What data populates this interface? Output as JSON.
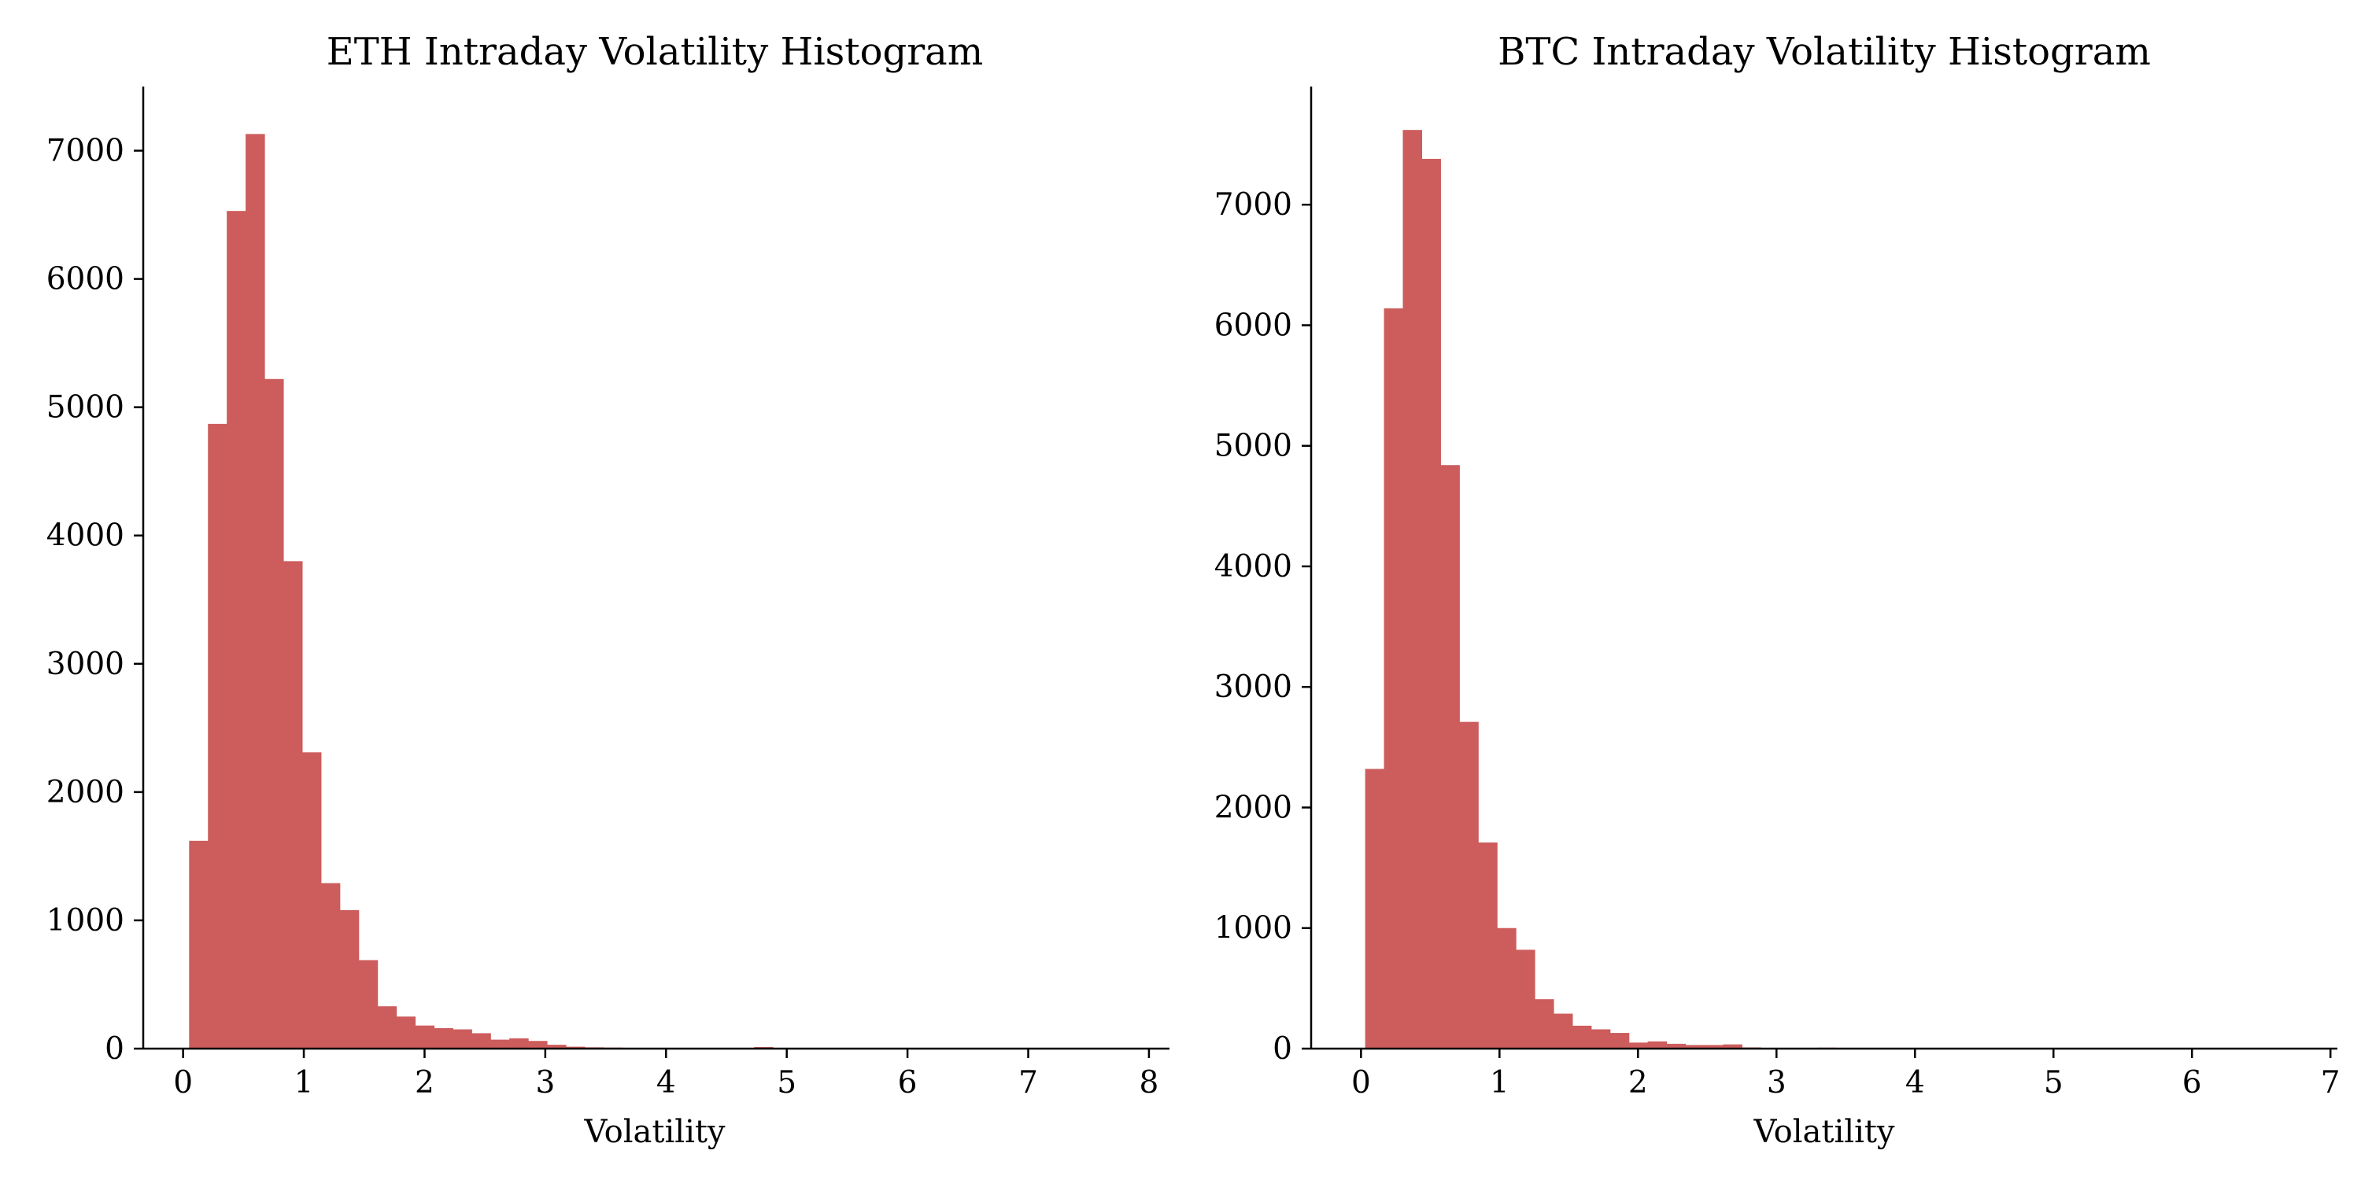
{
  "chart_data": [
    {
      "type": "bar",
      "subtype": "histogram",
      "title": "ETH Intraday Volatility Histogram",
      "xlabel": "Volatility",
      "ylabel": "",
      "xlim": [
        -0.33,
        8.17
      ],
      "ylim": [
        0,
        7500
      ],
      "xticks": [
        0,
        1,
        2,
        3,
        4,
        5,
        6,
        7,
        8
      ],
      "yticks": [
        0,
        1000,
        2000,
        3000,
        4000,
        5000,
        6000,
        7000
      ],
      "grid": false,
      "color": "#cd5c5c",
      "bins": {
        "start": 0.05,
        "width": 0.156,
        "counts": [
          1620,
          4870,
          6530,
          7130,
          5220,
          3800,
          2310,
          1290,
          1080,
          690,
          330,
          250,
          180,
          160,
          150,
          120,
          70,
          80,
          60,
          30,
          15,
          10,
          8,
          6,
          5,
          5,
          4,
          3,
          5,
          4,
          12,
          4,
          3,
          3,
          2,
          2,
          2,
          2,
          1,
          1,
          1,
          1,
          1,
          1,
          1,
          1,
          1,
          1,
          1,
          1
        ]
      }
    },
    {
      "type": "bar",
      "subtype": "histogram",
      "title": "BTC Intraday Volatility Histogram",
      "xlabel": "Volatility",
      "ylabel": "",
      "xlim": [
        -0.36,
        7.05
      ],
      "ylim": [
        0,
        7980
      ],
      "xticks": [
        0,
        1,
        2,
        3,
        4,
        5,
        6,
        7
      ],
      "yticks": [
        0,
        1000,
        2000,
        3000,
        4000,
        5000,
        6000,
        7000
      ],
      "grid": false,
      "color": "#cd5c5c",
      "bins": {
        "start": 0.03,
        "width": 0.136,
        "counts": [
          2320,
          6140,
          7620,
          7380,
          4840,
          2710,
          1710,
          1000,
          820,
          410,
          290,
          190,
          160,
          130,
          50,
          60,
          40,
          30,
          30,
          35,
          10,
          5,
          3,
          2,
          8,
          3,
          4,
          3,
          2,
          2,
          1,
          1,
          1,
          1,
          1,
          1,
          1,
          1,
          1,
          1,
          1,
          1,
          1,
          1,
          1,
          1,
          1,
          1,
          1,
          1
        ]
      }
    }
  ]
}
